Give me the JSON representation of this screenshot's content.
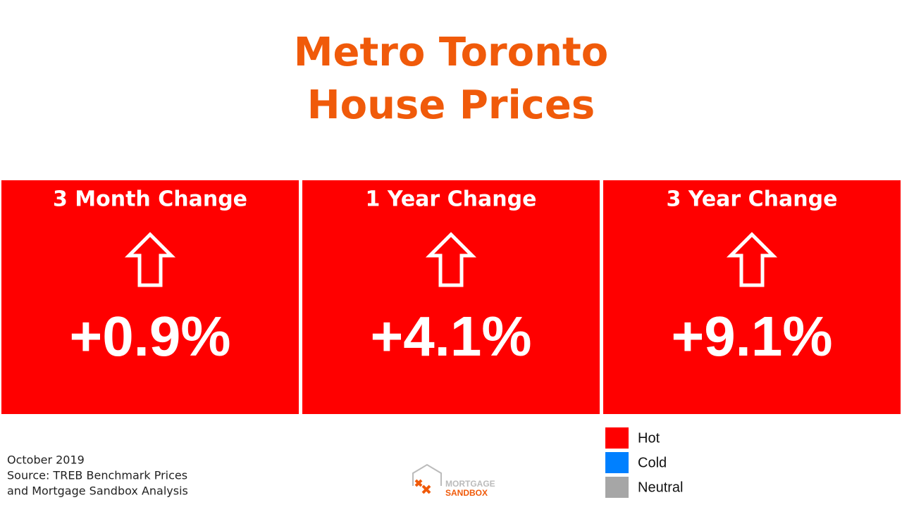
{
  "header": {
    "title_lines": [
      "Metro Toronto",
      "House Prices"
    ]
  },
  "cards": [
    {
      "label": "3 Month Change",
      "value": "+0.9%",
      "color": "#ff0000"
    },
    {
      "label": "1 Year Change",
      "value": "+4.1%",
      "color": "#ff0000"
    },
    {
      "label": "3 Year Change",
      "value": "+9.1%",
      "color": "#ff0000"
    }
  ],
  "legend": [
    {
      "label": "Hot",
      "color": "#ff0000"
    },
    {
      "label": "Cold",
      "color": "#0080ff"
    },
    {
      "label": "Neutral",
      "color": "#a6a6a6"
    }
  ],
  "footer": {
    "lines": [
      "October 2019",
      "Source: TREB Benchmark Prices",
      "and Mortgage Sandbox Analysis"
    ]
  },
  "logo": {
    "lines": [
      "MORTGAGE",
      "SANDBOX"
    ]
  }
}
